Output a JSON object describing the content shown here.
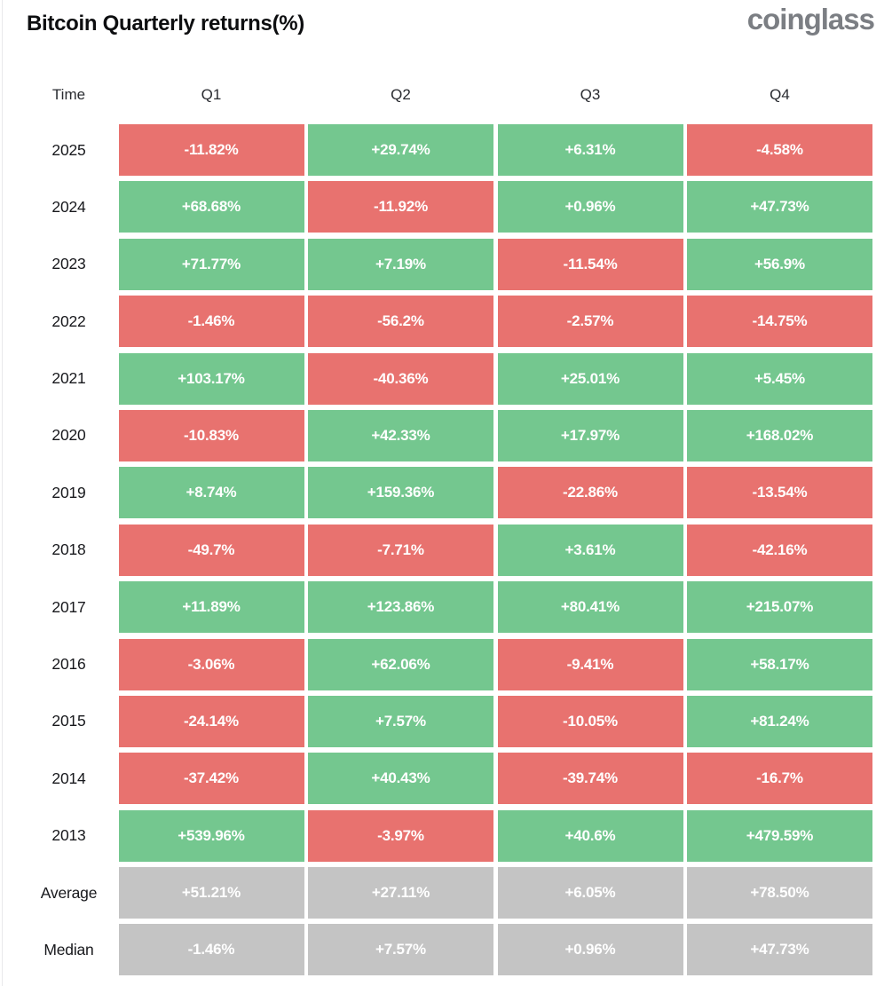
{
  "header": {
    "title": "Bitcoin Quarterly returns(%)",
    "logo_text": "coinglass"
  },
  "colors": {
    "positive": "#74c78f",
    "negative": "#e8726f",
    "neutral": "#c4c4c4",
    "title_text": "#0d0e10",
    "logo_text": "#7b7e83",
    "cell_text": "#ffffff"
  },
  "table": {
    "column_headers": [
      "Time",
      "Q1",
      "Q2",
      "Q3",
      "Q4"
    ],
    "rows": [
      {
        "label": "2025",
        "cells": [
          {
            "text": "-11.82%",
            "tone": "negative"
          },
          {
            "text": "+29.74%",
            "tone": "positive"
          },
          {
            "text": "+6.31%",
            "tone": "positive"
          },
          {
            "text": "-4.58%",
            "tone": "negative"
          }
        ]
      },
      {
        "label": "2024",
        "cells": [
          {
            "text": "+68.68%",
            "tone": "positive"
          },
          {
            "text": "-11.92%",
            "tone": "negative"
          },
          {
            "text": "+0.96%",
            "tone": "positive"
          },
          {
            "text": "+47.73%",
            "tone": "positive"
          }
        ]
      },
      {
        "label": "2023",
        "cells": [
          {
            "text": "+71.77%",
            "tone": "positive"
          },
          {
            "text": "+7.19%",
            "tone": "positive"
          },
          {
            "text": "-11.54%",
            "tone": "negative"
          },
          {
            "text": "+56.9%",
            "tone": "positive"
          }
        ]
      },
      {
        "label": "2022",
        "cells": [
          {
            "text": "-1.46%",
            "tone": "negative"
          },
          {
            "text": "-56.2%",
            "tone": "negative"
          },
          {
            "text": "-2.57%",
            "tone": "negative"
          },
          {
            "text": "-14.75%",
            "tone": "negative"
          }
        ]
      },
      {
        "label": "2021",
        "cells": [
          {
            "text": "+103.17%",
            "tone": "positive"
          },
          {
            "text": "-40.36%",
            "tone": "negative"
          },
          {
            "text": "+25.01%",
            "tone": "positive"
          },
          {
            "text": "+5.45%",
            "tone": "positive"
          }
        ]
      },
      {
        "label": "2020",
        "cells": [
          {
            "text": "-10.83%",
            "tone": "negative"
          },
          {
            "text": "+42.33%",
            "tone": "positive"
          },
          {
            "text": "+17.97%",
            "tone": "positive"
          },
          {
            "text": "+168.02%",
            "tone": "positive"
          }
        ]
      },
      {
        "label": "2019",
        "cells": [
          {
            "text": "+8.74%",
            "tone": "positive"
          },
          {
            "text": "+159.36%",
            "tone": "positive"
          },
          {
            "text": "-22.86%",
            "tone": "negative"
          },
          {
            "text": "-13.54%",
            "tone": "negative"
          }
        ]
      },
      {
        "label": "2018",
        "cells": [
          {
            "text": "-49.7%",
            "tone": "negative"
          },
          {
            "text": "-7.71%",
            "tone": "negative"
          },
          {
            "text": "+3.61%",
            "tone": "positive"
          },
          {
            "text": "-42.16%",
            "tone": "negative"
          }
        ]
      },
      {
        "label": "2017",
        "cells": [
          {
            "text": "+11.89%",
            "tone": "positive"
          },
          {
            "text": "+123.86%",
            "tone": "positive"
          },
          {
            "text": "+80.41%",
            "tone": "positive"
          },
          {
            "text": "+215.07%",
            "tone": "positive"
          }
        ]
      },
      {
        "label": "2016",
        "cells": [
          {
            "text": "-3.06%",
            "tone": "negative"
          },
          {
            "text": "+62.06%",
            "tone": "positive"
          },
          {
            "text": "-9.41%",
            "tone": "negative"
          },
          {
            "text": "+58.17%",
            "tone": "positive"
          }
        ]
      },
      {
        "label": "2015",
        "cells": [
          {
            "text": "-24.14%",
            "tone": "negative"
          },
          {
            "text": "+7.57%",
            "tone": "positive"
          },
          {
            "text": "-10.05%",
            "tone": "negative"
          },
          {
            "text": "+81.24%",
            "tone": "positive"
          }
        ]
      },
      {
        "label": "2014",
        "cells": [
          {
            "text": "-37.42%",
            "tone": "negative"
          },
          {
            "text": "+40.43%",
            "tone": "positive"
          },
          {
            "text": "-39.74%",
            "tone": "negative"
          },
          {
            "text": "-16.7%",
            "tone": "negative"
          }
        ]
      },
      {
        "label": "2013",
        "cells": [
          {
            "text": "+539.96%",
            "tone": "positive"
          },
          {
            "text": "-3.97%",
            "tone": "negative"
          },
          {
            "text": "+40.6%",
            "tone": "positive"
          },
          {
            "text": "+479.59%",
            "tone": "positive"
          }
        ]
      },
      {
        "label": "Average",
        "cells": [
          {
            "text": "+51.21%",
            "tone": "neutral"
          },
          {
            "text": "+27.11%",
            "tone": "neutral"
          },
          {
            "text": "+6.05%",
            "tone": "neutral"
          },
          {
            "text": "+78.50%",
            "tone": "neutral"
          }
        ]
      },
      {
        "label": "Median",
        "cells": [
          {
            "text": "-1.46%",
            "tone": "neutral"
          },
          {
            "text": "+7.57%",
            "tone": "neutral"
          },
          {
            "text": "+0.96%",
            "tone": "neutral"
          },
          {
            "text": "+47.73%",
            "tone": "neutral"
          }
        ]
      }
    ]
  },
  "chart_data": {
    "type": "heatmap",
    "title": "Bitcoin Quarterly returns(%)",
    "columns": [
      "Q1",
      "Q2",
      "Q3",
      "Q4"
    ],
    "rows": [
      "2025",
      "2024",
      "2023",
      "2022",
      "2021",
      "2020",
      "2019",
      "2018",
      "2017",
      "2016",
      "2015",
      "2014",
      "2013",
      "Average",
      "Median"
    ],
    "values": [
      [
        -11.82,
        29.74,
        6.31,
        -4.58
      ],
      [
        68.68,
        -11.92,
        0.96,
        47.73
      ],
      [
        71.77,
        7.19,
        -11.54,
        56.9
      ],
      [
        -1.46,
        -56.2,
        -2.57,
        -14.75
      ],
      [
        103.17,
        -40.36,
        25.01,
        5.45
      ],
      [
        -10.83,
        42.33,
        17.97,
        168.02
      ],
      [
        8.74,
        159.36,
        -22.86,
        -13.54
      ],
      [
        -49.7,
        -7.71,
        3.61,
        -42.16
      ],
      [
        11.89,
        123.86,
        80.41,
        215.07
      ],
      [
        -3.06,
        62.06,
        -9.41,
        58.17
      ],
      [
        -24.14,
        7.57,
        -10.05,
        81.24
      ],
      [
        -37.42,
        40.43,
        -39.74,
        -16.7
      ],
      [
        539.96,
        -3.97,
        40.6,
        479.59
      ],
      [
        51.21,
        27.11,
        6.05,
        78.5
      ],
      [
        -1.46,
        7.57,
        0.96,
        47.73
      ]
    ],
    "unit": "%",
    "color_rule": "positive values green, negative values red, Average/Median rows gray",
    "legend": "none",
    "grid": "off"
  }
}
